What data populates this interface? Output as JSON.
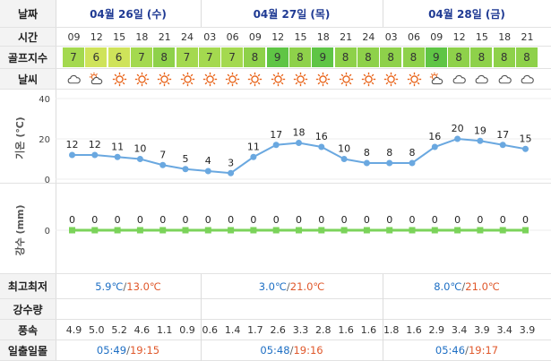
{
  "labels": {
    "date": "날짜",
    "time": "시간",
    "golf_index": "골프지수",
    "weather": "날씨",
    "temp_axis": "기온 (℃)",
    "rain_axis": "강수 (mm)",
    "high_low": "최고최저",
    "precip_amount": "강수량",
    "wind_speed": "풍속",
    "sunrise_sunset": "일출일몰"
  },
  "dates": [
    "04월 26일 (수)",
    "04월 27일 (목)",
    "04월 28일 (금)"
  ],
  "times": [
    "09",
    "12",
    "15",
    "18",
    "21",
    "24",
    "03",
    "06",
    "09",
    "12",
    "15",
    "18",
    "21",
    "24",
    "03",
    "06",
    "09",
    "12",
    "15",
    "18",
    "21"
  ],
  "golf_index": [
    {
      "value": "7",
      "color": "#a4d94f"
    },
    {
      "value": "6",
      "color": "#cfe35a"
    },
    {
      "value": "6",
      "color": "#cfe35a"
    },
    {
      "value": "7",
      "color": "#a4d94f"
    },
    {
      "value": "8",
      "color": "#8ed14a"
    },
    {
      "value": "7",
      "color": "#a4d94f"
    },
    {
      "value": "7",
      "color": "#a4d94f"
    },
    {
      "value": "7",
      "color": "#a4d94f"
    },
    {
      "value": "8",
      "color": "#8ed14a"
    },
    {
      "value": "9",
      "color": "#5fc545"
    },
    {
      "value": "8",
      "color": "#8ed14a"
    },
    {
      "value": "9",
      "color": "#5fc545"
    },
    {
      "value": "8",
      "color": "#8ed14a"
    },
    {
      "value": "8",
      "color": "#8ed14a"
    },
    {
      "value": "8",
      "color": "#8ed14a"
    },
    {
      "value": "8",
      "color": "#8ed14a"
    },
    {
      "value": "9",
      "color": "#5fc545"
    },
    {
      "value": "8",
      "color": "#8ed14a"
    },
    {
      "value": "8",
      "color": "#8ed14a"
    },
    {
      "value": "8",
      "color": "#8ed14a"
    },
    {
      "value": "8",
      "color": "#8ed14a"
    }
  ],
  "weather_icons": [
    "cloud-icon",
    "partly-cloudy-icon",
    "sun-icon",
    "sun-icon",
    "sun-icon",
    "sun-icon",
    "sun-icon",
    "sun-icon",
    "sun-icon",
    "sun-icon",
    "sun-icon",
    "sun-icon",
    "sun-icon",
    "sun-icon",
    "sun-icon",
    "sun-icon",
    "partly-cloudy-icon",
    "cloud-icon",
    "cloud-icon",
    "cloud-icon",
    "cloud-icon"
  ],
  "chart_data": [
    {
      "type": "line",
      "ylabel": "기온 (℃)",
      "yticks": [
        0,
        20,
        40
      ],
      "ylim": [
        0,
        40
      ],
      "x": [
        "09",
        "12",
        "15",
        "18",
        "21",
        "24",
        "03",
        "06",
        "09",
        "12",
        "15",
        "18",
        "21",
        "24",
        "03",
        "06",
        "09",
        "12",
        "15",
        "18",
        "21"
      ],
      "values": [
        12,
        12,
        11,
        10,
        7,
        5,
        4,
        3,
        11,
        17,
        18,
        16,
        10,
        8,
        8,
        8,
        16,
        20,
        19,
        17,
        15
      ],
      "color": "#6aa8e0"
    },
    {
      "type": "line",
      "ylabel": "강수 (mm)",
      "yticks": [
        0
      ],
      "x": [
        "09",
        "12",
        "15",
        "18",
        "21",
        "24",
        "03",
        "06",
        "09",
        "12",
        "15",
        "18",
        "21",
        "24",
        "03",
        "06",
        "09",
        "12",
        "15",
        "18",
        "21"
      ],
      "values": [
        0,
        0,
        0,
        0,
        0,
        0,
        0,
        0,
        0,
        0,
        0,
        0,
        0,
        0,
        0,
        0,
        0,
        0,
        0,
        0,
        0
      ],
      "color": "#7bd35a"
    }
  ],
  "high_low": [
    {
      "low": "5.9℃",
      "high": "13.0℃"
    },
    {
      "low": "3.0℃",
      "high": "21.0℃"
    },
    {
      "low": "8.0℃",
      "high": "21.0℃"
    }
  ],
  "wind": [
    "4.9",
    "5.0",
    "5.2",
    "4.6",
    "1.1",
    "0.9",
    "0.6",
    "1.4",
    "1.7",
    "2.6",
    "3.3",
    "2.8",
    "1.6",
    "1.6",
    "1.8",
    "1.6",
    "2.9",
    "3.4",
    "3.9",
    "3.4",
    "3.9"
  ],
  "sun": [
    {
      "rise": "05:49",
      "set": "19:15"
    },
    {
      "rise": "05:48",
      "set": "19:16"
    },
    {
      "rise": "05:46",
      "set": "19:17"
    }
  ],
  "slash": "/"
}
